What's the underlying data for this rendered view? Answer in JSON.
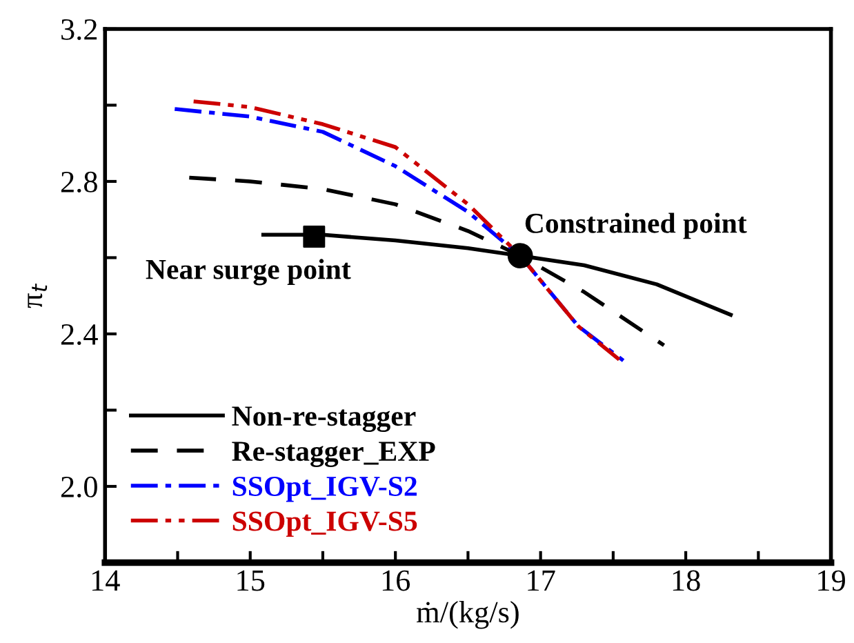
{
  "chart_data": {
    "type": "line",
    "xlabel": "ṁ/(kg/s)",
    "ylabel": "π$_{t}$",
    "xlim": [
      14,
      19
    ],
    "xticks": [
      14,
      {
        "value": 14.5,
        "label": null
      },
      15,
      {
        "value": 15.5,
        "label": null
      },
      16,
      {
        "value": 16.5,
        "label": null
      },
      17,
      {
        "value": 17.5,
        "label": null
      },
      18,
      {
        "value": 18.5,
        "label": null
      },
      19
    ],
    "ylim": [
      1.8,
      3.2
    ],
    "yticks": [
      {
        "value": 2.0,
        "label": "2.0"
      },
      {
        "value": 2.2,
        "label": null
      },
      2.4,
      {
        "value": 2.6,
        "label": null
      },
      2.8,
      {
        "value": 3.0,
        "label": null
      },
      3.2
    ],
    "grid": false,
    "legend": "bottom left",
    "series": [
      {
        "name": "Non-re-stagger",
        "color": "#000000",
        "line_style": "solid",
        "x": [
          15.09,
          15.5,
          16.0,
          16.5,
          16.86,
          17.3,
          17.8,
          18.31
        ],
        "values": [
          2.66,
          2.66,
          2.645,
          2.625,
          2.605,
          2.58,
          2.53,
          2.45
        ]
      },
      {
        "name": "Re-stagger_EXP",
        "color": "#000000",
        "line_style": "dashed",
        "x": [
          14.58,
          15.0,
          15.5,
          16.0,
          16.5,
          16.86,
          17.3,
          17.85
        ],
        "values": [
          2.81,
          2.8,
          2.78,
          2.74,
          2.67,
          2.605,
          2.51,
          2.37
        ]
      },
      {
        "name": "SSOpt_IGV-S2",
        "color": "#0000ff",
        "line_style": "dashdot",
        "x": [
          14.48,
          15.0,
          15.5,
          16.0,
          16.5,
          16.86,
          17.26,
          17.57
        ],
        "values": [
          2.99,
          2.97,
          2.93,
          2.84,
          2.72,
          2.605,
          2.42,
          2.33
        ]
      },
      {
        "name": "SSOpt_IGV-S5",
        "color": "#cc0000",
        "line_style": "dashdotdot",
        "x": [
          14.61,
          15.0,
          15.5,
          16.0,
          16.5,
          16.86,
          17.26,
          17.55
        ],
        "values": [
          3.01,
          2.995,
          2.95,
          2.89,
          2.74,
          2.605,
          2.42,
          2.33
        ]
      },
      {
        "type": "scatter",
        "marker": "square",
        "color": "#000000",
        "x": [
          15.44
        ],
        "values": [
          2.655
        ]
      },
      {
        "type": "scatter",
        "marker": "circle",
        "color": "#000000",
        "x": [
          16.86
        ],
        "values": [
          2.605
        ]
      }
    ],
    "annotations": [
      {
        "text": "Near surge point",
        "x": 15.44,
        "y": 2.655
      },
      {
        "text": "Constrained point",
        "x": 16.86,
        "y": 2.605
      }
    ]
  }
}
